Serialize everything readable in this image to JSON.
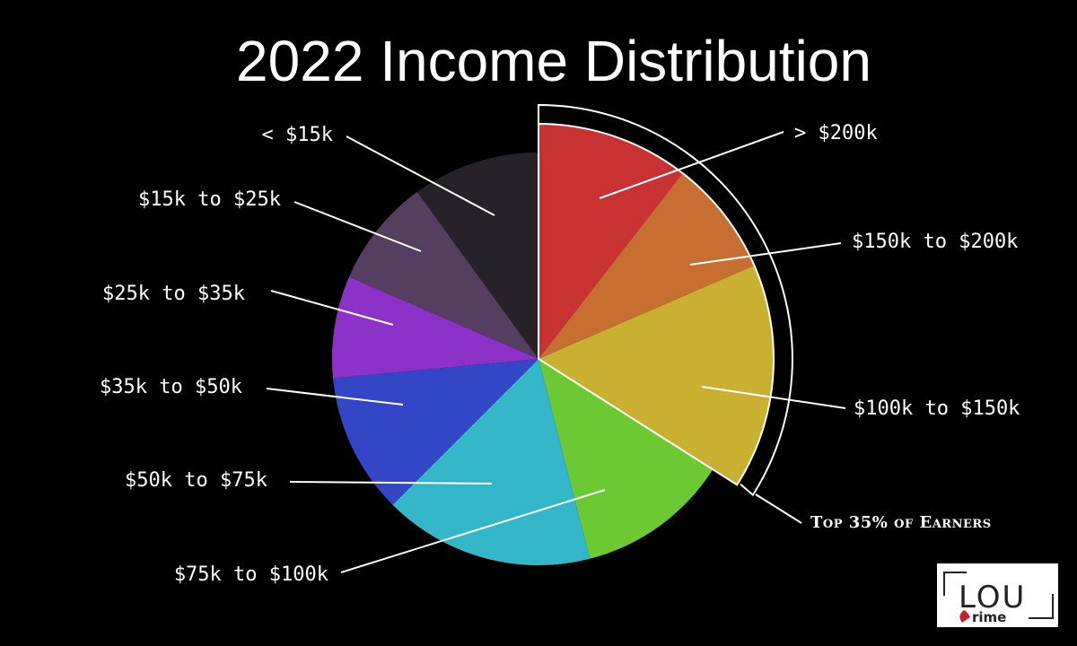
{
  "chart_data": {
    "type": "pie",
    "title": "2022 Income Distribution",
    "start_angle_deg": 0,
    "direction": "clockwise",
    "slices": [
      {
        "label": "> $200k",
        "value": 10.5,
        "color": "#c93233"
      },
      {
        "label": "$150k to $200k",
        "value": 8.0,
        "color": "#c76f31"
      },
      {
        "label": "$100k to $150k",
        "value": 15.5,
        "color": "#c9b031"
      },
      {
        "label": "$75k to $100k",
        "value": 12.0,
        "color": "#6cc933"
      },
      {
        "label": "$50k to $75k",
        "value": 16.5,
        "color": "#34b6c9"
      },
      {
        "label": "$35k to $50k",
        "value": 11.0,
        "color": "#3346c7"
      },
      {
        "label": "$25k to $35k",
        "value": 8.0,
        "color": "#8d32c9"
      },
      {
        "label": "$15k to $25k",
        "value": 8.5,
        "color": "#553e5f"
      },
      {
        "label": "< $15k",
        "value": 10.0,
        "color": "#27222a"
      }
    ],
    "annotation": "Top 35% of Earners",
    "highlighted_slices": [
      "> $200k",
      "$150k to $200k",
      "$100k to $150k"
    ]
  },
  "logo": {
    "main": "LOU",
    "sub": "rime",
    "accent_color": "#c7202a"
  }
}
